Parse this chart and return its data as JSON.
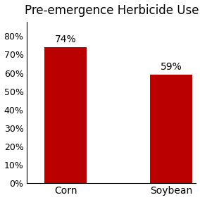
{
  "title": "Pre-emergence Herbicide Use",
  "categories": [
    "Corn",
    "Soybean"
  ],
  "values": [
    0.74,
    0.59
  ],
  "bar_labels": [
    "74%",
    "59%"
  ],
  "bar_color": "#bb0000",
  "ylim": [
    0,
    0.88
  ],
  "yticks": [
    0,
    0.1,
    0.2,
    0.3,
    0.4,
    0.5,
    0.6,
    0.7,
    0.8
  ],
  "ytick_labels": [
    "0%",
    "10%",
    "20%",
    "30%",
    "40%",
    "50%",
    "60%",
    "70%",
    "80%"
  ],
  "background_color": "#ffffff",
  "title_fontsize": 12,
  "label_fontsize": 10,
  "tick_fontsize": 9,
  "bar_width": 0.6
}
